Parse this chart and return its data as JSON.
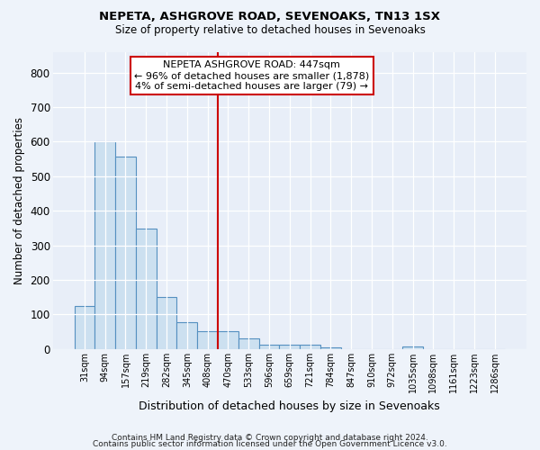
{
  "title": "NEPETA, ASHGROVE ROAD, SEVENOAKS, TN13 1SX",
  "subtitle": "Size of property relative to detached houses in Sevenoaks",
  "xlabel": "Distribution of detached houses by size in Sevenoaks",
  "ylabel": "Number of detached properties",
  "bar_color": "#cce0f0",
  "bar_edge_color": "#5590c0",
  "vline_color": "#cc0000",
  "annotation_title": "NEPETA ASHGROVE ROAD: 447sqm",
  "annotation_line1": "← 96% of detached houses are smaller (1,878)",
  "annotation_line2": "4% of semi-detached houses are larger (79) →",
  "annotation_box_color": "#cc0000",
  "categories": [
    "31sqm",
    "94sqm",
    "157sqm",
    "219sqm",
    "282sqm",
    "345sqm",
    "408sqm",
    "470sqm",
    "533sqm",
    "596sqm",
    "659sqm",
    "721sqm",
    "784sqm",
    "847sqm",
    "910sqm",
    "972sqm",
    "1035sqm",
    "1098sqm",
    "1161sqm",
    "1223sqm",
    "1286sqm"
  ],
  "values": [
    125,
    600,
    558,
    348,
    150,
    77,
    52,
    52,
    30,
    14,
    12,
    12,
    5,
    0,
    0,
    0,
    8,
    0,
    0,
    0,
    0
  ],
  "ylim": [
    0,
    860
  ],
  "yticks": [
    0,
    100,
    200,
    300,
    400,
    500,
    600,
    700,
    800
  ],
  "footer1": "Contains HM Land Registry data © Crown copyright and database right 2024.",
  "footer2": "Contains public sector information licensed under the Open Government Licence v3.0.",
  "bg_color": "#eef3fa",
  "plot_bg_color": "#e8eef8",
  "vline_bar_index": 7
}
